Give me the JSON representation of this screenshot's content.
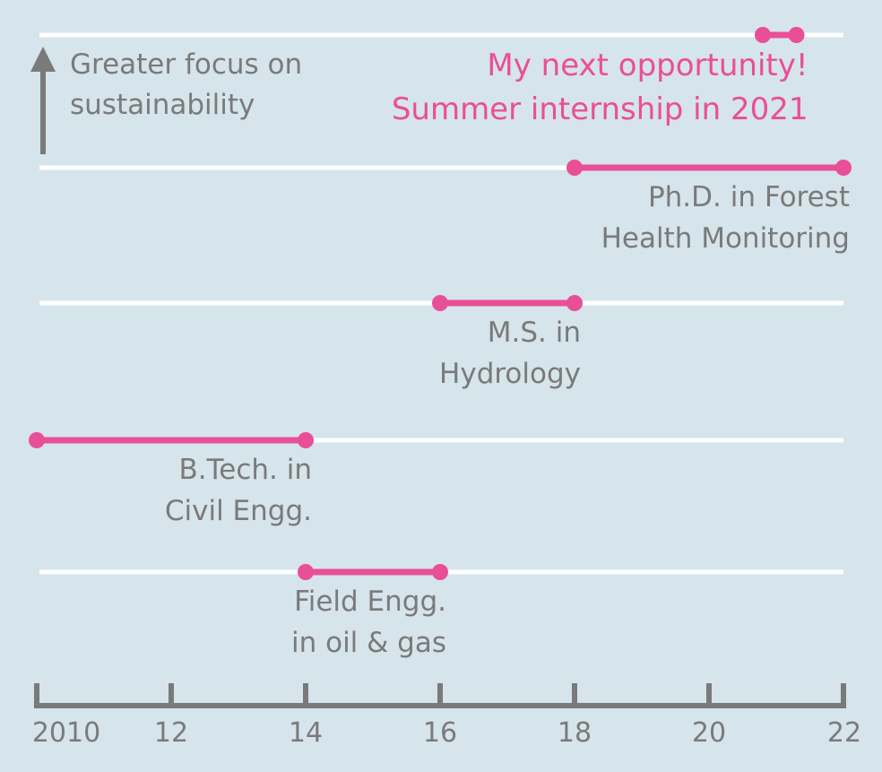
{
  "colors": {
    "background": "#d6e4eb",
    "gridline": "#ffffff",
    "segment": "#e94f97",
    "axis": "#7a7a7a",
    "text": "#7a7a7a",
    "highlight_text": "#e94f97"
  },
  "axis_note": {
    "lines": [
      "Greater focus on",
      "sustainability"
    ],
    "arrow_icon": "up-arrow-icon"
  },
  "chart_data": {
    "type": "range",
    "x_ticks": [
      "2010",
      "12",
      "14",
      "16",
      "18",
      "20",
      "22"
    ],
    "x_tick_values": [
      2010,
      2012,
      2014,
      2016,
      2018,
      2020,
      2022
    ],
    "xlim": [
      2010,
      2022
    ],
    "y_meaning": "greater focus on sustainability (upward)",
    "grid": true,
    "segments": [
      {
        "label": [
          "My next opportunity!",
          "Summer internship in 2021"
        ],
        "start": 2020.8,
        "end": 2021.3,
        "highlight": true
      },
      {
        "label": [
          "Ph.D. in Forest",
          "Health Monitoring"
        ],
        "start": 2018,
        "end": 2022,
        "highlight": false
      },
      {
        "label": [
          "M.S. in",
          "Hydrology"
        ],
        "start": 2016,
        "end": 2018,
        "highlight": false
      },
      {
        "label": [
          "B.Tech. in",
          "Civil Engg."
        ],
        "start": 2010,
        "end": 2014,
        "highlight": false
      },
      {
        "label": [
          "Field Engg.",
          "in oil & gas"
        ],
        "start": 2014,
        "end": 2016,
        "highlight": false
      }
    ]
  }
}
